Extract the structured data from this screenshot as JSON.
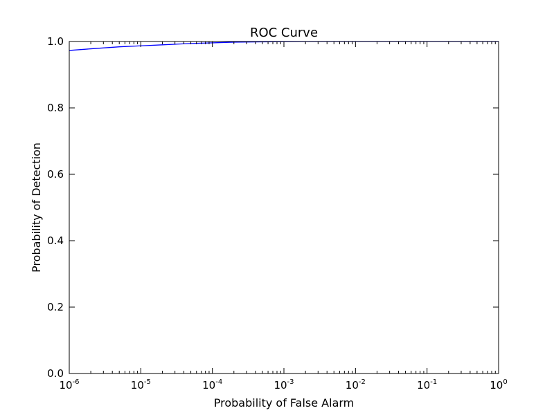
{
  "chart_data": {
    "type": "line",
    "title": "ROC Curve",
    "xlabel": "Probability of False Alarm",
    "ylabel": "Probability of Detection",
    "xscale": "log",
    "xlim": [
      1e-06,
      1
    ],
    "ylim": [
      0,
      1
    ],
    "grid": false,
    "legend": "none",
    "x_ticks": [
      {
        "base": "10",
        "exp": "-6",
        "value": 1e-06
      },
      {
        "base": "10",
        "exp": "-5",
        "value": 1e-05
      },
      {
        "base": "10",
        "exp": "-4",
        "value": 0.0001
      },
      {
        "base": "10",
        "exp": "-3",
        "value": 0.001
      },
      {
        "base": "10",
        "exp": "-2",
        "value": 0.01
      },
      {
        "base": "10",
        "exp": "-1",
        "value": 0.1
      },
      {
        "base": "10",
        "exp": "0",
        "value": 1
      }
    ],
    "y_ticks": [
      {
        "label": "0.0",
        "value": 0.0
      },
      {
        "label": "0.2",
        "value": 0.2
      },
      {
        "label": "0.4",
        "value": 0.4
      },
      {
        "label": "0.6",
        "value": 0.6
      },
      {
        "label": "0.8",
        "value": 0.8
      },
      {
        "label": "1.0",
        "value": 1.0
      }
    ],
    "series": [
      {
        "color": "#0000ff",
        "x": [
          1e-06,
          2e-06,
          5e-06,
          1e-05,
          2e-05,
          5e-05,
          0.0001,
          0.0002,
          0.0005,
          0.001,
          0.002,
          0.005,
          0.01,
          0.1,
          1
        ],
        "y": [
          0.973,
          0.978,
          0.984,
          0.987,
          0.99,
          0.994,
          0.996,
          0.998,
          0.999,
          0.9995,
          0.9998,
          1.0,
          1.0,
          1.0,
          1.0
        ]
      }
    ]
  }
}
